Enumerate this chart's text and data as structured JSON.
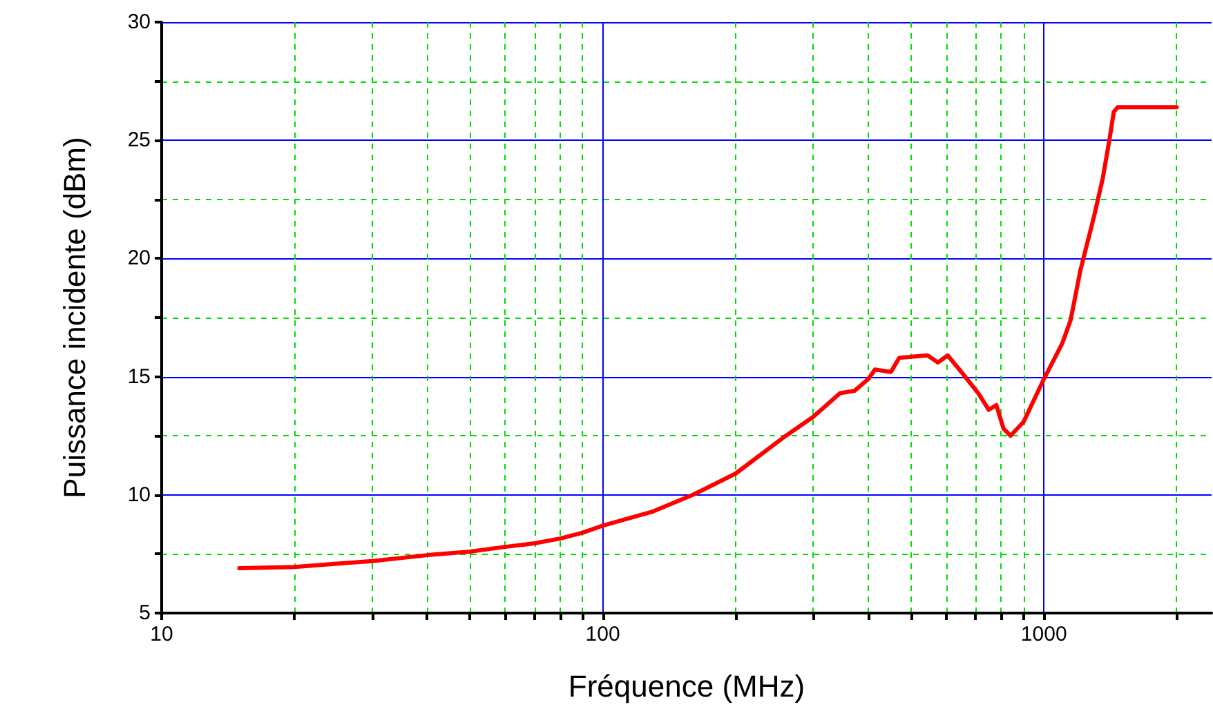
{
  "chart_data": {
    "type": "line",
    "xlabel": "Fréquence (MHz)",
    "ylabel": "Puissance incidente (dBm)",
    "log": "x",
    "grid": true,
    "marker": "none",
    "line_style": "solid",
    "xlim": [
      10,
      2400
    ],
    "ylim": [
      5,
      30
    ],
    "xticks": [
      10,
      {
        "value": 20,
        "label": null
      },
      {
        "value": 30,
        "label": null
      },
      {
        "value": 40,
        "label": null
      },
      {
        "value": 50,
        "label": null
      },
      {
        "value": 60,
        "label": null
      },
      {
        "value": 70,
        "label": null
      },
      {
        "value": 80,
        "label": null
      },
      {
        "value": 90,
        "label": null
      },
      100,
      {
        "value": 200,
        "label": null
      },
      {
        "value": 300,
        "label": null
      },
      {
        "value": 400,
        "label": null
      },
      {
        "value": 500,
        "label": null
      },
      {
        "value": 600,
        "label": null
      },
      {
        "value": 700,
        "label": null
      },
      {
        "value": 800,
        "label": null
      },
      {
        "value": 900,
        "label": null
      },
      1000,
      {
        "value": 2000,
        "label": null
      }
    ],
    "yticks": [
      5,
      {
        "value": 7.5,
        "label": null
      },
      10,
      {
        "value": 12.5,
        "label": null
      },
      15,
      {
        "value": 17.5,
        "label": null
      },
      20,
      {
        "value": 22.5,
        "label": null
      },
      25,
      {
        "value": 27.5,
        "label": null
      },
      30
    ],
    "series": [
      {
        "color": "#ff0000",
        "x": [
          15,
          20,
          30,
          40,
          50,
          60,
          70,
          80,
          90,
          100,
          130,
          160,
          200,
          260,
          300,
          345,
          372,
          400,
          414,
          450,
          470,
          545,
          575,
          605,
          650,
          710,
          750,
          780,
          810,
          840,
          880,
          900,
          1000,
          1100,
          1150,
          1210,
          1300,
          1360,
          1410,
          1440,
          1470,
          2000
        ],
        "values": [
          6.9,
          6.95,
          7.2,
          7.45,
          7.6,
          7.8,
          7.95,
          8.15,
          8.4,
          8.7,
          9.3,
          10.0,
          10.9,
          12.5,
          13.3,
          14.3,
          14.4,
          14.9,
          15.3,
          15.2,
          15.8,
          15.9,
          15.6,
          15.9,
          15.2,
          14.3,
          13.6,
          13.8,
          12.8,
          12.5,
          12.9,
          13.1,
          14.9,
          16.4,
          17.4,
          19.5,
          21.8,
          23.4,
          25.1,
          26.2,
          26.4,
          26.4
        ]
      }
    ]
  }
}
